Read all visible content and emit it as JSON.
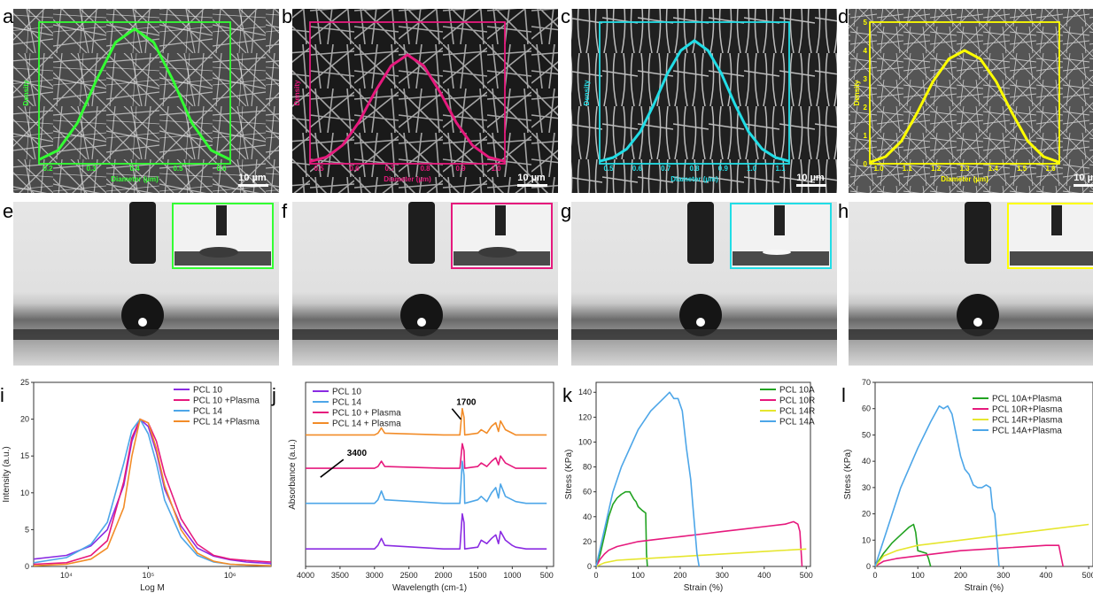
{
  "panel_letters": [
    "a",
    "b",
    "c",
    "d",
    "e",
    "f",
    "g",
    "h",
    "i",
    "j",
    "k",
    "l"
  ],
  "scale_bar_label": "10 µm",
  "chart_data": [
    {
      "panel": "a",
      "type": "line",
      "color": "#33ff33",
      "xlabel": "Diameter (µm)",
      "ylabel": "Density",
      "x_ticks": [
        "0.2",
        "0.3",
        "0.4",
        "0.5",
        "0.6"
      ],
      "x": [
        0.15,
        0.2,
        0.25,
        0.3,
        0.35,
        0.4,
        0.45,
        0.5,
        0.55,
        0.6,
        0.65
      ],
      "y": [
        0.03,
        0.1,
        0.3,
        0.62,
        0.9,
        1.0,
        0.9,
        0.62,
        0.3,
        0.1,
        0.03
      ],
      "xlim": [
        0.15,
        0.65
      ],
      "ylim": [
        0,
        1.05
      ]
    },
    {
      "panel": "b",
      "type": "line",
      "color": "#e6197d",
      "xlabel": "Diameter (µm)",
      "ylabel": "Density",
      "x_ticks": [
        "0.5",
        "0.6",
        "0.7",
        "0.8",
        "0.9",
        "1.0"
      ],
      "x": [
        0.45,
        0.5,
        0.55,
        0.6,
        0.65,
        0.7,
        0.75,
        0.8,
        0.85,
        0.9,
        0.95,
        1.0,
        1.05
      ],
      "y": [
        0.02,
        0.06,
        0.17,
        0.38,
        0.66,
        0.9,
        1.0,
        0.9,
        0.66,
        0.38,
        0.17,
        0.06,
        0.02
      ],
      "xlim": [
        0.45,
        1.05
      ],
      "ylim": [
        0,
        1.3
      ]
    },
    {
      "panel": "c",
      "type": "line",
      "color": "#22dde6",
      "xlabel": "Diameter (µm)",
      "ylabel": "Density",
      "x_ticks": [
        "0.5",
        "0.6",
        "0.7",
        "0.8",
        "0.9",
        "1.0",
        "1.1"
      ],
      "x": [
        0.45,
        0.5,
        0.55,
        0.6,
        0.65,
        0.7,
        0.75,
        0.8,
        0.85,
        0.9,
        0.95,
        1.0,
        1.05,
        1.1,
        1.15
      ],
      "y": [
        0.02,
        0.05,
        0.12,
        0.26,
        0.48,
        0.73,
        0.92,
        1.0,
        0.92,
        0.73,
        0.48,
        0.26,
        0.12,
        0.05,
        0.02
      ],
      "xlim": [
        0.45,
        1.15
      ],
      "ylim": [
        0,
        1.15
      ]
    },
    {
      "panel": "d",
      "type": "line",
      "color": "#ffff00",
      "xlabel": "Diameter (µm)",
      "ylabel": "Density",
      "x_ticks": [
        "1.0",
        "1.1",
        "1.2",
        "1.3",
        "1.4",
        "1.5",
        "1.6"
      ],
      "y_ticks": [
        "0",
        "1",
        "2",
        "3",
        "4",
        "5"
      ],
      "x": [
        1.0,
        1.05,
        1.1,
        1.15,
        1.2,
        1.25,
        1.3,
        1.35,
        1.4,
        1.45,
        1.5,
        1.55,
        1.6
      ],
      "y": [
        0.05,
        0.25,
        0.8,
        1.8,
        2.9,
        3.7,
        4.0,
        3.7,
        2.9,
        1.8,
        0.8,
        0.25,
        0.05
      ],
      "xlim": [
        1.0,
        1.6
      ],
      "ylim": [
        0,
        5
      ]
    },
    {
      "panel": "i",
      "type": "line",
      "xlabel": "Log M",
      "ylabel": "Intensity (a.u.)",
      "x_ticks": [
        "10⁴",
        "10⁵",
        "10⁶"
      ],
      "x_tick_pos": [
        4,
        5,
        6
      ],
      "y_ticks": [
        "0",
        "5",
        "10",
        "15",
        "20",
        "25"
      ],
      "xlim": [
        3.6,
        6.5
      ],
      "ylim": [
        0,
        25
      ],
      "series": [
        {
          "name": "PCL 10",
          "color": "#8a2be2",
          "x": [
            3.6,
            4.0,
            4.3,
            4.5,
            4.7,
            4.8,
            4.9,
            5.0,
            5.1,
            5.2,
            5.4,
            5.6,
            5.8,
            6.0,
            6.2,
            6.5
          ],
          "y": [
            1.0,
            1.5,
            2.8,
            5.0,
            11.0,
            17.0,
            20.0,
            19.0,
            15.5,
            10.5,
            5.5,
            2.5,
            1.4,
            0.9,
            0.6,
            0.4
          ]
        },
        {
          "name": "PCL 10 +Plasma",
          "color": "#e6197d",
          "x": [
            3.6,
            4.0,
            4.3,
            4.5,
            4.7,
            4.8,
            4.9,
            5.0,
            5.1,
            5.2,
            5.4,
            5.6,
            5.8,
            6.0,
            6.2,
            6.5
          ],
          "y": [
            0.3,
            0.5,
            1.5,
            3.5,
            11.5,
            17.5,
            20.0,
            19.5,
            17.0,
            12.5,
            6.5,
            3.0,
            1.5,
            1.0,
            0.8,
            0.6
          ]
        },
        {
          "name": "PCL 14",
          "color": "#4da6e8",
          "x": [
            3.6,
            4.0,
            4.3,
            4.5,
            4.7,
            4.8,
            4.9,
            5.0,
            5.1,
            5.2,
            5.4,
            5.6,
            5.8,
            6.0,
            6.2,
            6.5
          ],
          "y": [
            0.5,
            1.2,
            3.0,
            6.0,
            14.0,
            18.5,
            20.0,
            18.0,
            14.0,
            9.0,
            4.0,
            1.5,
            0.6,
            0.3,
            0.2,
            0.1
          ]
        },
        {
          "name": "PCL 14 +Plasma",
          "color": "#f28c28",
          "x": [
            3.6,
            4.0,
            4.3,
            4.5,
            4.7,
            4.8,
            4.9,
            5.0,
            5.1,
            5.2,
            5.4,
            5.6,
            5.8,
            6.0,
            6.2,
            6.5
          ],
          "y": [
            0.1,
            0.3,
            1.0,
            2.5,
            8.0,
            15.0,
            20.0,
            19.5,
            16.0,
            11.0,
            5.0,
            1.8,
            0.7,
            0.3,
            0.2,
            0.1
          ]
        }
      ]
    },
    {
      "panel": "j",
      "type": "line",
      "xlabel": "Wavelength (cm-1)",
      "ylabel": "Absorbance (a.u.)",
      "x_ticks": [
        "4000",
        "3500",
        "3000",
        "2500",
        "2000",
        "1500",
        "1000",
        "500"
      ],
      "x_tick_pos": [
        4000,
        3500,
        3000,
        2500,
        2000,
        1500,
        1000,
        500
      ],
      "xlim": [
        4000,
        400
      ],
      "ylim": [
        0,
        10.5
      ],
      "x_reversed": true,
      "annotations": [
        {
          "text": "1700",
          "x": 1720,
          "y": 9.1
        },
        {
          "text": "3400",
          "x": 3450,
          "y": 6.2
        }
      ],
      "series": [
        {
          "name": "PCL 10",
          "color": "#8a2be2",
          "x": [
            4000,
            3000,
            2950,
            2900,
            2850,
            2000,
            1760,
            1725,
            1700,
            1690,
            1500,
            1450,
            1370,
            1300,
            1240,
            1200,
            1170,
            1100,
            1000,
            950,
            800,
            500
          ],
          "y": [
            1.0,
            1.0,
            1.2,
            1.6,
            1.2,
            1.0,
            1.0,
            3.0,
            2.5,
            1.0,
            1.1,
            1.5,
            1.3,
            1.6,
            1.8,
            1.3,
            2.0,
            1.5,
            1.2,
            1.1,
            1.0,
            1.0
          ]
        },
        {
          "name": "PCL 14",
          "color": "#4da6e8",
          "x": [
            4000,
            3000,
            2950,
            2900,
            2850,
            2000,
            1760,
            1725,
            1700,
            1690,
            1500,
            1450,
            1370,
            1300,
            1240,
            1200,
            1170,
            1100,
            1000,
            950,
            800,
            500
          ],
          "y": [
            3.6,
            3.6,
            3.8,
            4.3,
            3.8,
            3.6,
            3.6,
            6.0,
            5.2,
            3.6,
            3.8,
            4.0,
            3.7,
            4.2,
            4.5,
            3.9,
            4.7,
            4.0,
            3.8,
            3.7,
            3.6,
            3.6
          ]
        },
        {
          "name": "PCL 10 + Plasma",
          "color": "#e6197d",
          "x": [
            4000,
            3000,
            2950,
            2900,
            2850,
            2000,
            1760,
            1725,
            1700,
            1690,
            1500,
            1450,
            1370,
            1300,
            1240,
            1200,
            1170,
            1100,
            1000,
            950,
            800,
            500
          ],
          "y": [
            5.6,
            5.6,
            5.7,
            6.0,
            5.7,
            5.6,
            5.6,
            7.0,
            6.6,
            5.6,
            5.7,
            5.9,
            5.7,
            6.0,
            6.2,
            5.8,
            6.3,
            5.9,
            5.7,
            5.6,
            5.6,
            5.6
          ]
        },
        {
          "name": "PCL 14 + Plasma",
          "color": "#f28c28",
          "x": [
            4000,
            3000,
            2950,
            2900,
            2850,
            2000,
            1760,
            1725,
            1700,
            1690,
            1500,
            1450,
            1370,
            1300,
            1240,
            1200,
            1170,
            1100,
            1000,
            950,
            800,
            500
          ],
          "y": [
            7.5,
            7.5,
            7.6,
            7.9,
            7.6,
            7.5,
            7.5,
            9.0,
            8.5,
            7.5,
            7.6,
            7.8,
            7.6,
            8.0,
            8.2,
            7.7,
            8.3,
            7.8,
            7.6,
            7.5,
            7.5,
            7.5
          ]
        }
      ]
    },
    {
      "panel": "k",
      "type": "line",
      "xlabel": "Strain (%)",
      "ylabel": "Stress (KPa)",
      "x_ticks": [
        "0",
        "100",
        "200",
        "300",
        "400",
        "500"
      ],
      "x_tick_pos": [
        0,
        100,
        200,
        300,
        400,
        500
      ],
      "y_ticks": [
        "0",
        "20",
        "40",
        "60",
        "80",
        "100",
        "120",
        "140"
      ],
      "y_tick_pos": [
        0,
        20,
        40,
        60,
        80,
        100,
        120,
        140
      ],
      "xlim": [
        0,
        510
      ],
      "ylim": [
        0,
        148
      ],
      "series": [
        {
          "name": "PCL 10A",
          "color": "#22a322",
          "x": [
            0,
            10,
            20,
            30,
            40,
            50,
            60,
            70,
            80,
            90,
            95,
            100,
            110,
            118,
            120,
            122
          ],
          "y": [
            0,
            10,
            25,
            40,
            50,
            55,
            58,
            60,
            60,
            54,
            52,
            48,
            45,
            43,
            10,
            0
          ]
        },
        {
          "name": "PCL 10R",
          "color": "#e6197d",
          "x": [
            0,
            10,
            20,
            30,
            50,
            100,
            150,
            200,
            250,
            300,
            350,
            400,
            450,
            470,
            480,
            485,
            490
          ],
          "y": [
            0,
            6,
            10,
            13,
            16,
            20,
            22,
            24,
            26,
            28,
            30,
            32,
            34,
            36,
            34,
            28,
            0
          ]
        },
        {
          "name": "PCL 14R",
          "color": "#e6e62e",
          "x": [
            0,
            20,
            50,
            100,
            150,
            200,
            300,
            400,
            500
          ],
          "y": [
            0,
            3,
            5,
            6,
            7,
            8,
            10,
            12,
            14
          ]
        },
        {
          "name": "PCL 14A",
          "color": "#4da6e8",
          "x": [
            0,
            10,
            20,
            40,
            60,
            80,
            100,
            130,
            160,
            175,
            185,
            195,
            205,
            215,
            225,
            230,
            235,
            240,
            245
          ],
          "y": [
            0,
            15,
            30,
            60,
            80,
            95,
            110,
            125,
            135,
            140,
            135,
            135,
            125,
            95,
            70,
            50,
            30,
            10,
            0
          ]
        }
      ]
    },
    {
      "panel": "l",
      "type": "line",
      "xlabel": "Strain (%)",
      "ylabel": "Stress (KPa)",
      "x_ticks": [
        "0",
        "100",
        "200",
        "300",
        "400",
        "500"
      ],
      "x_tick_pos": [
        0,
        100,
        200,
        300,
        400,
        500
      ],
      "y_ticks": [
        "0",
        "10",
        "20",
        "30",
        "40",
        "50",
        "60",
        "70"
      ],
      "y_tick_pos": [
        0,
        10,
        20,
        30,
        40,
        50,
        60,
        70
      ],
      "xlim": [
        0,
        510
      ],
      "ylim": [
        0,
        70
      ],
      "series": [
        {
          "name": "PCL 10A+Plasma",
          "color": "#22a322",
          "x": [
            0,
            20,
            40,
            60,
            80,
            90,
            95,
            100,
            120,
            125,
            130
          ],
          "y": [
            0,
            5,
            9,
            12,
            15,
            16,
            13,
            6,
            5,
            3,
            0
          ]
        },
        {
          "name": "PCL 10R+Plasma",
          "color": "#e6197d",
          "x": [
            0,
            20,
            50,
            100,
            200,
            300,
            400,
            430,
            440
          ],
          "y": [
            0,
            2,
            3,
            4,
            6,
            7,
            8,
            8,
            0
          ]
        },
        {
          "name": "PCL 14R+Plasma",
          "color": "#e6e62e",
          "x": [
            0,
            20,
            50,
            100,
            200,
            300,
            400,
            500
          ],
          "y": [
            0,
            4,
            6,
            8,
            10,
            12,
            14,
            16
          ]
        },
        {
          "name": "PCL 14A+Plasma",
          "color": "#4da6e8",
          "x": [
            0,
            10,
            30,
            60,
            100,
            130,
            150,
            160,
            170,
            180,
            190,
            200,
            210,
            220,
            230,
            240,
            250,
            260,
            270,
            275,
            280,
            285,
            290
          ],
          "y": [
            0,
            5,
            15,
            30,
            45,
            55,
            61,
            60,
            61,
            58,
            50,
            42,
            37,
            35,
            31,
            30,
            30,
            31,
            30,
            22,
            20,
            10,
            0
          ]
        }
      ]
    }
  ]
}
